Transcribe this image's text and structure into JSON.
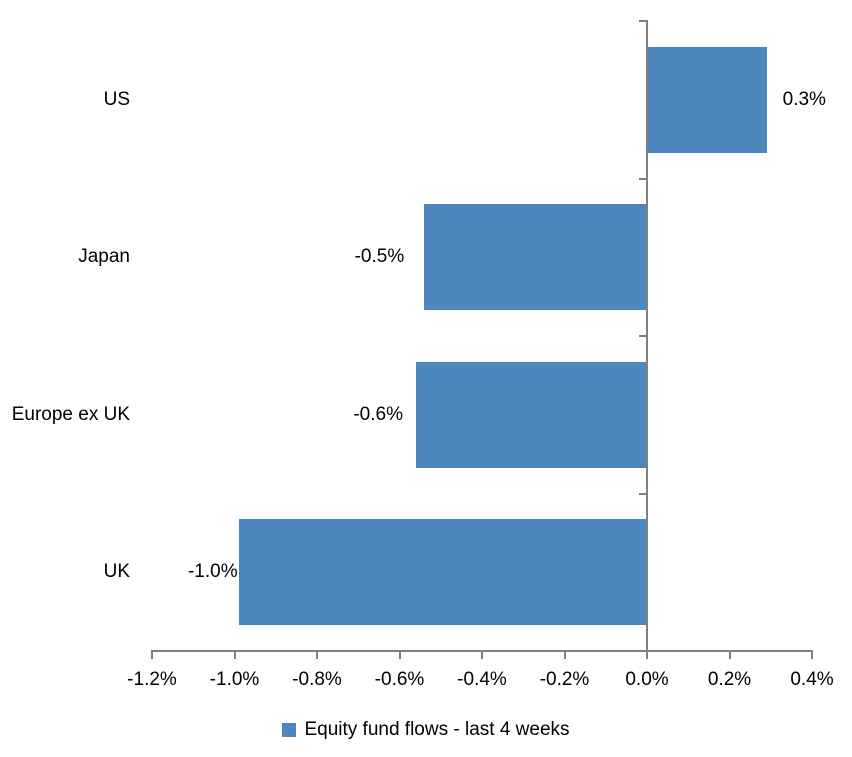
{
  "chart_data": {
    "type": "bar",
    "orientation": "horizontal",
    "title": "",
    "xlabel": "",
    "ylabel": "",
    "categories": [
      "US",
      "Japan",
      "Europe ex UK",
      "UK"
    ],
    "values": [
      0.29,
      -0.54,
      -0.56,
      -0.99
    ],
    "data_labels": [
      "0.3%",
      "-0.5%",
      "-0.6%",
      "-1.0%"
    ],
    "x_axis": {
      "min": -1.2,
      "max": 0.4,
      "step": 0.2,
      "tick_labels": [
        "-1.2%",
        "-1.0%",
        "-0.8%",
        "-0.6%",
        "-0.4%",
        "-0.2%",
        "0.0%",
        "0.2%",
        "0.4%"
      ]
    },
    "legend": {
      "position": "bottom",
      "entries": [
        {
          "label": "Equity fund flows - last 4 weeks",
          "swatch_color": "#4E86BE"
        }
      ]
    },
    "colors": {
      "bar": "#4E86BE",
      "axis": "#808080",
      "text": "#000000",
      "background": "#FFFFFF"
    },
    "grid": false
  }
}
